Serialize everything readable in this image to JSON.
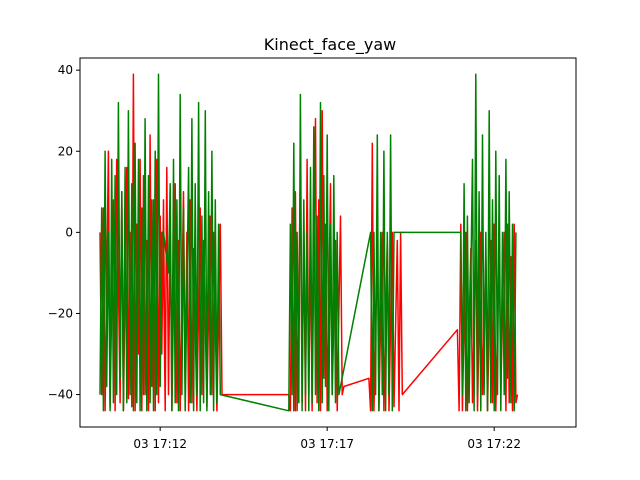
{
  "chart_data": {
    "type": "line",
    "title": "Kinect_face_yaw",
    "xlabel": "",
    "ylabel": "",
    "ylim": [
      -48,
      43
    ],
    "xlim_minutes": [
      9.6,
      24.45
    ],
    "x_ticks": [
      {
        "label": "03 17:12",
        "t": 12.0
      },
      {
        "label": "03 17:17",
        "t": 17.0
      },
      {
        "label": "03 17:22",
        "t": 22.0
      }
    ],
    "y_ticks": [
      {
        "label": "−40",
        "value": -40
      },
      {
        "label": "−20",
        "value": -20
      },
      {
        "label": "0",
        "value": 0
      },
      {
        "label": "20",
        "value": 20
      },
      {
        "label": "40",
        "value": 40
      }
    ],
    "x_time_origin": "17:00",
    "grid": false,
    "series": [
      {
        "color": "#ff0000",
        "points": [
          [
            10.2,
            0
          ],
          [
            10.25,
            -40
          ],
          [
            10.3,
            6
          ],
          [
            10.35,
            -44
          ],
          [
            10.45,
            20
          ],
          [
            10.5,
            -43
          ],
          [
            10.6,
            8
          ],
          [
            10.65,
            -44
          ],
          [
            10.7,
            18
          ],
          [
            10.8,
            -42
          ],
          [
            10.85,
            10
          ],
          [
            10.9,
            -44
          ],
          [
            11.0,
            16
          ],
          [
            11.05,
            -41
          ],
          [
            11.1,
            0
          ],
          [
            11.15,
            -43
          ],
          [
            11.2,
            39
          ],
          [
            11.25,
            -44
          ],
          [
            11.3,
            2
          ],
          [
            11.35,
            -30
          ],
          [
            11.4,
            18
          ],
          [
            11.45,
            -44
          ],
          [
            11.5,
            14
          ],
          [
            11.55,
            -40
          ],
          [
            11.6,
            -2
          ],
          [
            11.65,
            -44
          ],
          [
            11.7,
            24
          ],
          [
            11.75,
            -38
          ],
          [
            11.8,
            8
          ],
          [
            11.85,
            -44
          ],
          [
            11.9,
            18
          ],
          [
            11.95,
            -42
          ],
          [
            12.0,
            4
          ],
          [
            12.05,
            -30
          ],
          [
            12.1,
            8
          ],
          [
            12.15,
            -44
          ],
          [
            12.1,
            -6
          ],
          [
            12.15,
            -44
          ],
          [
            12.2,
            16
          ],
          [
            12.25,
            -40
          ],
          [
            12.3,
            2
          ],
          [
            12.35,
            -44
          ],
          [
            12.45,
            12
          ],
          [
            12.5,
            -42
          ],
          [
            12.55,
            -2
          ],
          [
            12.6,
            -44
          ],
          [
            12.7,
            10
          ],
          [
            12.75,
            -38
          ],
          [
            12.8,
            0
          ],
          [
            12.85,
            -44
          ],
          [
            12.9,
            8
          ],
          [
            12.95,
            -42
          ],
          [
            13.0,
            -4
          ],
          [
            13.1,
            -44
          ],
          [
            13.2,
            6
          ],
          [
            13.25,
            -40
          ],
          [
            13.3,
            -2
          ],
          [
            13.4,
            -43
          ],
          [
            13.5,
            4
          ],
          [
            13.55,
            -40
          ],
          [
            13.6,
            0
          ],
          [
            13.7,
            -44
          ],
          [
            13.8,
            2
          ],
          [
            13.85,
            -40
          ],
          [
            13.9,
            -40
          ],
          [
            15.85,
            -40
          ],
          [
            15.9,
            -44
          ],
          [
            15.95,
            6
          ],
          [
            16.0,
            -44
          ],
          [
            16.05,
            10
          ],
          [
            16.1,
            -44
          ],
          [
            16.2,
            14
          ],
          [
            16.25,
            -42
          ],
          [
            16.3,
            0
          ],
          [
            16.35,
            -44
          ],
          [
            16.4,
            18
          ],
          [
            16.45,
            -40
          ],
          [
            16.5,
            -2
          ],
          [
            16.55,
            -44
          ],
          [
            16.65,
            28
          ],
          [
            16.7,
            -42
          ],
          [
            16.75,
            8
          ],
          [
            16.8,
            -44
          ],
          [
            16.85,
            30
          ],
          [
            16.9,
            -36
          ],
          [
            16.95,
            2
          ],
          [
            17.0,
            -44
          ],
          [
            17.1,
            12
          ],
          [
            17.15,
            -40
          ],
          [
            17.25,
            -2
          ],
          [
            17.3,
            -44
          ],
          [
            17.4,
            4
          ],
          [
            17.45,
            -40
          ],
          [
            17.5,
            -38
          ],
          [
            18.25,
            -36
          ],
          [
            18.3,
            -44
          ],
          [
            18.35,
            22
          ],
          [
            18.4,
            -44
          ],
          [
            18.5,
            -4
          ],
          [
            18.55,
            -44
          ],
          [
            18.65,
            0
          ],
          [
            18.7,
            -44
          ],
          [
            18.8,
            -2
          ],
          [
            18.85,
            -44
          ],
          [
            18.95,
            0
          ],
          [
            19.0,
            -43
          ],
          [
            19.1,
            -2
          ],
          [
            19.15,
            -44
          ],
          [
            19.2,
            0
          ],
          [
            19.25,
            -40
          ],
          [
            20.9,
            -24
          ],
          [
            20.95,
            -44
          ],
          [
            21.0,
            2
          ],
          [
            21.05,
            -44
          ],
          [
            21.15,
            0
          ],
          [
            21.2,
            -44
          ],
          [
            21.3,
            -4
          ],
          [
            21.35,
            -42
          ],
          [
            21.45,
            -2
          ],
          [
            21.5,
            -44
          ],
          [
            21.6,
            0
          ],
          [
            21.65,
            -40
          ],
          [
            21.75,
            -6
          ],
          [
            21.8,
            -44
          ],
          [
            21.9,
            -2
          ],
          [
            21.95,
            -42
          ],
          [
            22.0,
            2
          ],
          [
            22.05,
            -44
          ],
          [
            22.15,
            -4
          ],
          [
            22.2,
            -40
          ],
          [
            22.3,
            0
          ],
          [
            22.35,
            -44
          ],
          [
            22.4,
            2
          ],
          [
            22.45,
            -42
          ],
          [
            22.5,
            -6
          ],
          [
            22.55,
            -44
          ],
          [
            22.6,
            2
          ],
          [
            22.65,
            -42
          ],
          [
            22.7,
            -40
          ]
        ]
      },
      {
        "color": "#008000",
        "points": [
          [
            10.2,
            -40
          ],
          [
            10.25,
            6
          ],
          [
            10.3,
            -44
          ],
          [
            10.35,
            20
          ],
          [
            10.4,
            -38
          ],
          [
            10.45,
            0
          ],
          [
            10.5,
            -44
          ],
          [
            10.55,
            18
          ],
          [
            10.6,
            -42
          ],
          [
            10.65,
            14
          ],
          [
            10.7,
            -40
          ],
          [
            10.75,
            32
          ],
          [
            10.8,
            -36
          ],
          [
            10.85,
            10
          ],
          [
            10.9,
            -44
          ],
          [
            10.95,
            16
          ],
          [
            11.0,
            -42
          ],
          [
            11.05,
            30
          ],
          [
            11.1,
            -40
          ],
          [
            11.15,
            12
          ],
          [
            11.2,
            -44
          ],
          [
            11.25,
            22
          ],
          [
            11.3,
            -42
          ],
          [
            11.35,
            18
          ],
          [
            11.4,
            -44
          ],
          [
            11.45,
            6
          ],
          [
            11.5,
            -40
          ],
          [
            11.55,
            28
          ],
          [
            11.6,
            -44
          ],
          [
            11.65,
            14
          ],
          [
            11.7,
            -42
          ],
          [
            11.75,
            8
          ],
          [
            11.8,
            -44
          ],
          [
            11.85,
            20
          ],
          [
            11.9,
            -40
          ],
          [
            11.95,
            39
          ],
          [
            12.0,
            -38
          ],
          [
            12.05,
            0
          ],
          [
            12.1,
            0
          ],
          [
            12.25,
            -10
          ],
          [
            12.3,
            12
          ],
          [
            12.35,
            -44
          ],
          [
            12.4,
            18
          ],
          [
            12.45,
            -42
          ],
          [
            12.5,
            8
          ],
          [
            12.55,
            -44
          ],
          [
            12.6,
            34
          ],
          [
            12.65,
            -40
          ],
          [
            12.7,
            6
          ],
          [
            12.75,
            -44
          ],
          [
            12.85,
            16
          ],
          [
            12.9,
            -42
          ],
          [
            12.95,
            28
          ],
          [
            13.0,
            -44
          ],
          [
            13.05,
            12
          ],
          [
            13.1,
            -40
          ],
          [
            13.15,
            32
          ],
          [
            13.2,
            -44
          ],
          [
            13.25,
            4
          ],
          [
            13.3,
            -42
          ],
          [
            13.35,
            30
          ],
          [
            13.4,
            -44
          ],
          [
            13.45,
            10
          ],
          [
            13.5,
            -40
          ],
          [
            13.55,
            20
          ],
          [
            13.6,
            -44
          ],
          [
            13.65,
            8
          ],
          [
            13.7,
            -42
          ],
          [
            13.75,
            2
          ],
          [
            13.8,
            -40
          ],
          [
            15.85,
            -44
          ],
          [
            15.9,
            2
          ],
          [
            15.95,
            -40
          ],
          [
            16.0,
            22
          ],
          [
            16.05,
            -44
          ],
          [
            16.1,
            0
          ],
          [
            16.15,
            -42
          ],
          [
            16.2,
            34
          ],
          [
            16.25,
            -44
          ],
          [
            16.3,
            8
          ],
          [
            16.35,
            -40
          ],
          [
            16.4,
            0
          ],
          [
            16.45,
            -44
          ],
          [
            16.5,
            16
          ],
          [
            16.55,
            -42
          ],
          [
            16.6,
            26
          ],
          [
            16.65,
            -40
          ],
          [
            16.7,
            4
          ],
          [
            16.75,
            -44
          ],
          [
            16.8,
            32
          ],
          [
            16.85,
            -42
          ],
          [
            16.9,
            14
          ],
          [
            16.95,
            -38
          ],
          [
            17.0,
            24
          ],
          [
            17.05,
            -44
          ],
          [
            17.1,
            2
          ],
          [
            17.15,
            -40
          ],
          [
            17.2,
            14
          ],
          [
            17.25,
            -42
          ],
          [
            17.3,
            0
          ],
          [
            17.35,
            -40
          ],
          [
            18.3,
            0
          ],
          [
            18.35,
            -44
          ],
          [
            18.4,
            0
          ],
          [
            18.45,
            -40
          ],
          [
            18.5,
            24
          ],
          [
            18.55,
            -44
          ],
          [
            18.6,
            0
          ],
          [
            18.65,
            -40
          ],
          [
            18.7,
            20
          ],
          [
            18.75,
            -44
          ],
          [
            18.8,
            0
          ],
          [
            18.85,
            -40
          ],
          [
            18.9,
            24
          ],
          [
            18.95,
            -44
          ],
          [
            19.0,
            0
          ],
          [
            19.1,
            0
          ],
          [
            19.3,
            0
          ],
          [
            19.6,
            0
          ],
          [
            19.95,
            0
          ],
          [
            21.0,
            0
          ],
          [
            21.05,
            -40
          ],
          [
            21.1,
            12
          ],
          [
            21.15,
            -44
          ],
          [
            21.2,
            4
          ],
          [
            21.25,
            -42
          ],
          [
            21.35,
            18
          ],
          [
            21.4,
            -44
          ],
          [
            21.45,
            39
          ],
          [
            21.5,
            -40
          ],
          [
            21.55,
            10
          ],
          [
            21.6,
            -44
          ],
          [
            21.65,
            24
          ],
          [
            21.7,
            -40
          ],
          [
            21.75,
            0
          ],
          [
            21.8,
            -44
          ],
          [
            21.85,
            30
          ],
          [
            21.9,
            -42
          ],
          [
            21.95,
            8
          ],
          [
            22.0,
            -44
          ],
          [
            22.05,
            20
          ],
          [
            22.1,
            -40
          ],
          [
            22.15,
            14
          ],
          [
            22.2,
            -44
          ],
          [
            22.25,
            0
          ],
          [
            22.3,
            -40
          ],
          [
            22.35,
            18
          ],
          [
            22.4,
            -36
          ],
          [
            22.45,
            10
          ],
          [
            22.5,
            -42
          ],
          [
            22.55,
            2
          ],
          [
            22.6,
            -44
          ],
          [
            22.65,
            0
          ]
        ]
      }
    ]
  }
}
